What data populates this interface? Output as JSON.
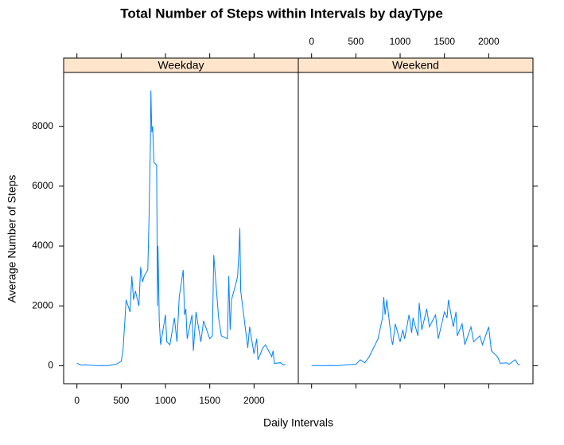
{
  "chart_data": {
    "type": "line",
    "title": "Total Number of Steps within Intervals by dayType",
    "xlabel": "Daily Intervals",
    "ylabel": "Average Number of Steps",
    "xlim": [
      -150,
      2500
    ],
    "xticks": [
      0,
      500,
      1000,
      1500,
      2000
    ],
    "ylim": [
      -600,
      9800
    ],
    "yticks": [
      0,
      2000,
      4000,
      6000,
      8000
    ],
    "strip_color": "#ffe5cc",
    "panels": [
      {
        "name": "Weekday",
        "color": "#0080ff",
        "x": [
          0,
          50,
          100,
          150,
          200,
          250,
          300,
          350,
          400,
          450,
          500,
          520,
          545,
          555,
          600,
          620,
          640,
          660,
          700,
          720,
          740,
          760,
          800,
          815,
          830,
          835,
          845,
          855,
          870,
          900,
          910,
          915,
          930,
          945,
          1000,
          1015,
          1050,
          1100,
          1130,
          1155,
          1200,
          1215,
          1230,
          1245,
          1300,
          1315,
          1345,
          1400,
          1430,
          1500,
          1530,
          1545,
          1600,
          1630,
          1700,
          1715,
          1730,
          1745,
          1800,
          1815,
          1830,
          1840,
          1850,
          1900,
          1930,
          1950,
          2000,
          2030,
          2045,
          2100,
          2130,
          2200,
          2215,
          2230,
          2300,
          2330,
          2355
        ],
        "values": [
          80,
          20,
          30,
          20,
          10,
          0,
          10,
          0,
          30,
          60,
          150,
          500,
          1700,
          2200,
          1800,
          3000,
          2200,
          2500,
          2000,
          3300,
          2800,
          3000,
          3200,
          5000,
          7500,
          9200,
          7800,
          8000,
          6800,
          6700,
          2000,
          4000,
          1500,
          700,
          1700,
          800,
          700,
          1600,
          800,
          2300,
          3200,
          1700,
          1900,
          900,
          1700,
          500,
          1800,
          800,
          1500,
          900,
          1000,
          3700,
          1600,
          1000,
          900,
          3000,
          1200,
          2200,
          2800,
          3000,
          3800,
          4600,
          2500,
          1300,
          600,
          1300,
          400,
          900,
          200,
          600,
          700,
          300,
          500,
          80,
          100,
          30,
          50
        ]
      },
      {
        "name": "Weekend",
        "color": "#0080ff",
        "x": [
          0,
          100,
          200,
          300,
          400,
          500,
          550,
          600,
          650,
          700,
          750,
          800,
          815,
          830,
          850,
          900,
          915,
          945,
          1000,
          1030,
          1050,
          1100,
          1130,
          1145,
          1200,
          1215,
          1245,
          1300,
          1330,
          1400,
          1430,
          1500,
          1530,
          1545,
          1600,
          1630,
          1645,
          1700,
          1730,
          1800,
          1830,
          1900,
          1930,
          2000,
          2030,
          2100,
          2130,
          2200,
          2230,
          2300,
          2330,
          2355
        ],
        "values": [
          10,
          0,
          10,
          5,
          30,
          50,
          200,
          100,
          300,
          600,
          900,
          1600,
          2300,
          1700,
          2200,
          900,
          700,
          1400,
          800,
          1200,
          900,
          1700,
          1100,
          1600,
          1000,
          2100,
          1200,
          1900,
          1300,
          1700,
          900,
          1800,
          1600,
          2200,
          1300,
          1800,
          1000,
          1400,
          700,
          1300,
          800,
          1000,
          700,
          1300,
          500,
          300,
          80,
          100,
          50,
          200,
          50,
          30
        ]
      }
    ]
  }
}
